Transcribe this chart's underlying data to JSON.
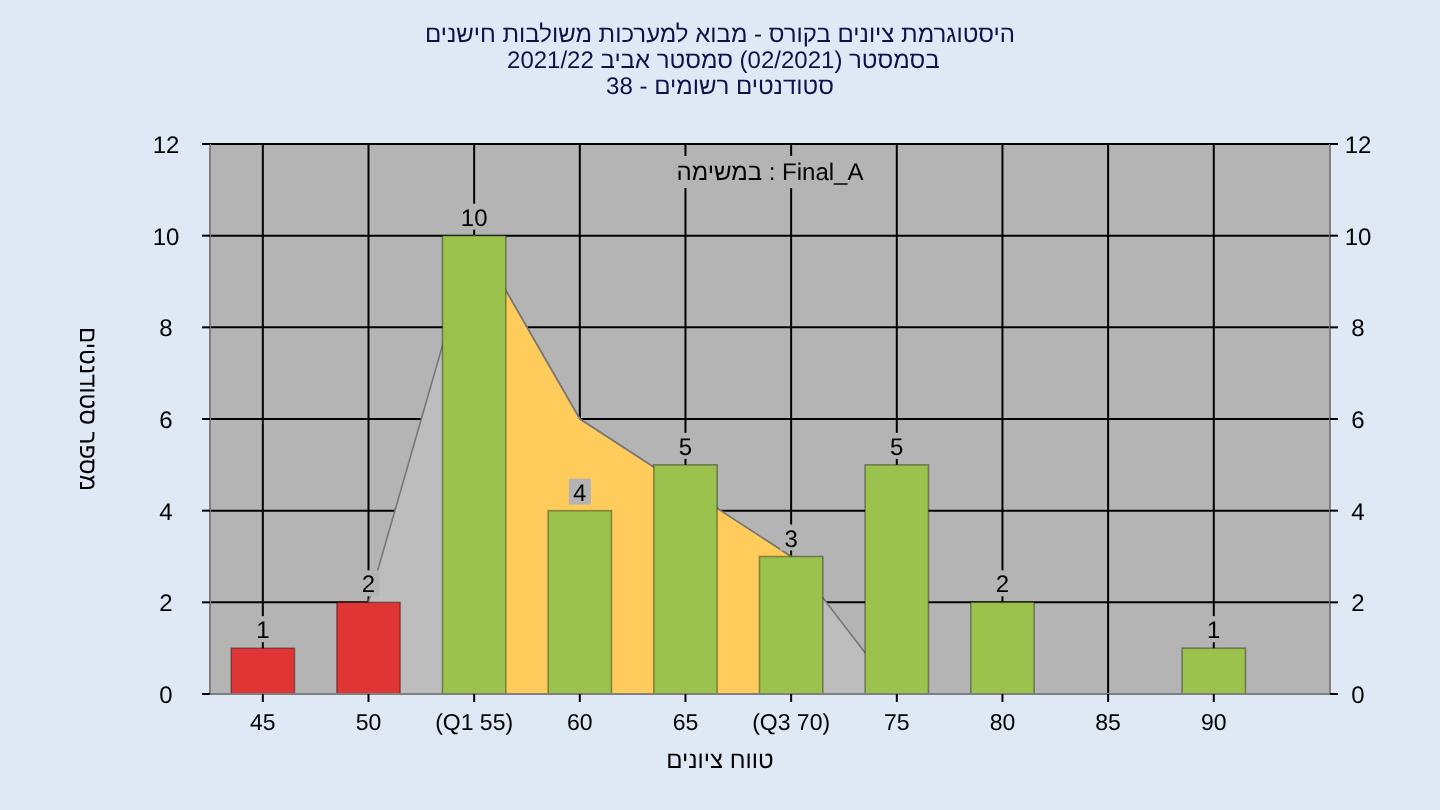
{
  "chart_data": {
    "type": "bar",
    "title": "היסטוגרמת ציונים בקורס - מבוא למערכות משולבות חישנים",
    "subtitle": "בסמסטר (02/2021) סמסטר אביב 2021/22\nסטודנטים רשומים - 38",
    "xlabel": "טווח ציונים",
    "ylabel": "מספר סטודנטים",
    "annotations": [
      "Final_A : במשימה"
    ],
    "categories": [
      "45",
      "50",
      "(Q1 55)",
      "60",
      "65",
      "(Q3 70)",
      "75",
      "80",
      "85",
      "90"
    ],
    "series": [
      {
        "type": "area",
        "color": "#bdbdbd",
        "values": [
          null,
          2,
          10,
          6,
          null,
          3,
          0,
          null,
          null,
          null
        ]
      },
      {
        "type": "area",
        "color": "#ffcc5c",
        "values": [
          null,
          null,
          10,
          6,
          null,
          3,
          null,
          null,
          null,
          null
        ]
      },
      {
        "colors": [
          "#e03535",
          "#e03535",
          "#9cc24e",
          "#9cc24e",
          "#9cc24e",
          "#9cc24e",
          "#9cc24e",
          "#9cc24e",
          "#9cc24e",
          "#9cc24e"
        ],
        "values": [
          1,
          2,
          10,
          4,
          5,
          3,
          5,
          2,
          0,
          1
        ],
        "value_labels": [
          "1",
          "2",
          "10",
          "4",
          "5",
          "3",
          "5",
          "2",
          null,
          "1"
        ]
      }
    ],
    "ylim": [
      0,
      12
    ],
    "yticks": [
      0,
      2,
      4,
      6,
      8,
      10,
      12
    ],
    "y2lim": [
      0,
      12
    ],
    "y2ticks": [
      0,
      2,
      4,
      6,
      8,
      10,
      12
    ],
    "grid": true
  }
}
